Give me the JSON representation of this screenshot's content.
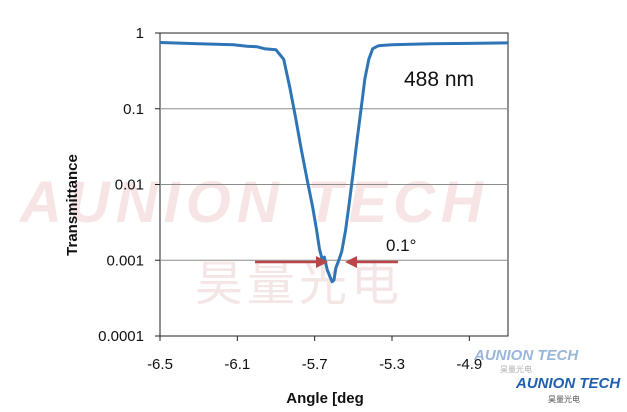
{
  "chart_data": {
    "type": "line",
    "title": "",
    "xlabel": "Angle [deg",
    "ylabel": "Transmittance",
    "xlim": [
      -6.5,
      -4.7
    ],
    "ylim": [
      0.0001,
      1
    ],
    "yscale": "log",
    "grid": "horizontal",
    "xticks": [
      -6.5,
      -6.1,
      -5.7,
      -5.3,
      -4.9
    ],
    "xtick_labels": [
      "-6.5",
      "-6.1",
      "-5.7",
      "-5.3",
      "-4.9"
    ],
    "yticks": [
      1,
      0.1,
      0.01,
      0.001,
      0.0001
    ],
    "ytick_labels": [
      "1",
      "0.1",
      "0.01",
      "0.001",
      "0.0001"
    ],
    "line_color": "#2e75b6",
    "series": [
      {
        "x": [
          -6.5,
          -6.3,
          -6.12,
          -6.05,
          -6.0,
          -5.96,
          -5.9,
          -5.86,
          -5.83,
          -5.8,
          -5.77,
          -5.74,
          -5.71,
          -5.69,
          -5.675,
          -5.66,
          -5.65,
          -5.635,
          -5.62,
          -5.61,
          -5.6,
          -5.59,
          -5.575,
          -5.56,
          -5.54,
          -5.52,
          -5.5,
          -5.48,
          -5.46,
          -5.44,
          -5.42,
          -5.4,
          -5.37,
          -5.3,
          -5.1,
          -4.9,
          -4.7
        ],
        "y": [
          0.75,
          0.72,
          0.7,
          0.67,
          0.66,
          0.62,
          0.6,
          0.45,
          0.2,
          0.08,
          0.03,
          0.012,
          0.005,
          0.0025,
          0.0014,
          0.001,
          0.0011,
          0.00075,
          0.0006,
          0.00052,
          0.00055,
          0.0008,
          0.001,
          0.0013,
          0.0025,
          0.006,
          0.015,
          0.04,
          0.1,
          0.25,
          0.45,
          0.62,
          0.68,
          0.7,
          0.72,
          0.73,
          0.74
        ]
      }
    ],
    "annotations": [
      {
        "text": "488 nm"
      },
      {
        "text": "0.1°"
      }
    ],
    "arrow_color": "#b84848"
  },
  "watermark": {
    "main_text": "AUNION TECH",
    "chinese_text": "昊量光电",
    "logo_text_1": "AUNION TECH",
    "logo_text_2": "AUNION TECH",
    "logo_chinese_1": "昊量光电",
    "logo_chinese_2": "昊量光电"
  }
}
